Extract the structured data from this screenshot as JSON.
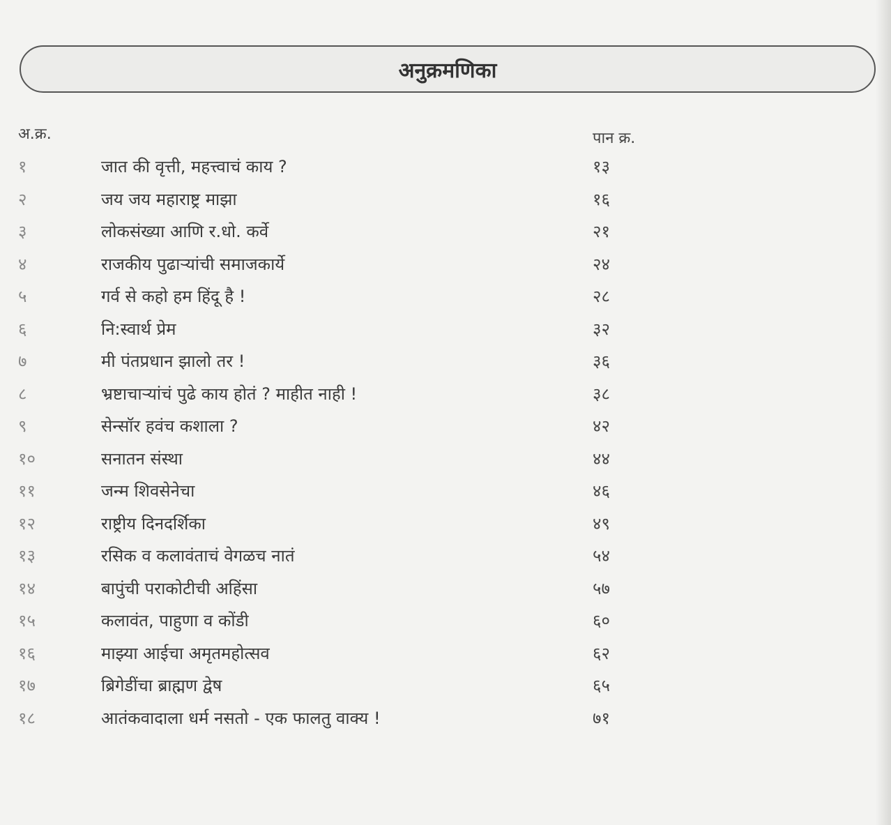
{
  "title": "अनुक्रमणिका",
  "headers": {
    "serial": "अ.क्र.",
    "page": "पान क्र."
  },
  "entries": [
    {
      "no": "१",
      "title": "जात की वृत्ती, महत्त्वाचं काय ?",
      "page": "१३"
    },
    {
      "no": "२",
      "title": "जय जय महाराष्ट्र माझा",
      "page": "१६"
    },
    {
      "no": "३",
      "title": "लोकसंख्या आणि र.धो. कर्वे",
      "page": "२१"
    },
    {
      "no": "४",
      "title": "राजकीय पुढाऱ्यांची समाजकार्ये",
      "page": "२४"
    },
    {
      "no": "५",
      "title": "गर्व से कहो हम हिंदू है !",
      "page": "२८"
    },
    {
      "no": "६",
      "title": "नि:स्वार्थ प्रेम",
      "page": "३२"
    },
    {
      "no": "७",
      "title": "मी पंतप्रधान झालो तर !",
      "page": "३६"
    },
    {
      "no": "८",
      "title": "भ्रष्टाचाऱ्यांचं पुढे काय होतं ? माहीत नाही !",
      "page": "३८"
    },
    {
      "no": "९",
      "title": "सेन्सॉर हवंच कशाला ?",
      "page": "४२"
    },
    {
      "no": "१०",
      "title": "सनातन संस्था",
      "page": "४४"
    },
    {
      "no": "११",
      "title": "जन्म शिवसेनेचा",
      "page": "४६"
    },
    {
      "no": "१२",
      "title": "राष्ट्रीय दिनदर्शिका",
      "page": "४९"
    },
    {
      "no": "१३",
      "title": "रसिक व कलावंताचं वेगळच नातं",
      "page": "५४"
    },
    {
      "no": "१४",
      "title": "बापुंची पराकोटीची अहिंसा",
      "page": "५७"
    },
    {
      "no": "१५",
      "title": "कलावंत, पाहुणा व कोंडी",
      "page": "६०"
    },
    {
      "no": "१६",
      "title": "माझ्या आईचा अमृतमहोत्सव",
      "page": "६२"
    },
    {
      "no": "१७",
      "title": "ब्रिगेडींचा ब्राह्मण द्वेष",
      "page": "६५"
    },
    {
      "no": "१८",
      "title": "आतंकवादाला धर्म नसतो - एक फालतु वाक्य !",
      "page": "७१"
    }
  ]
}
